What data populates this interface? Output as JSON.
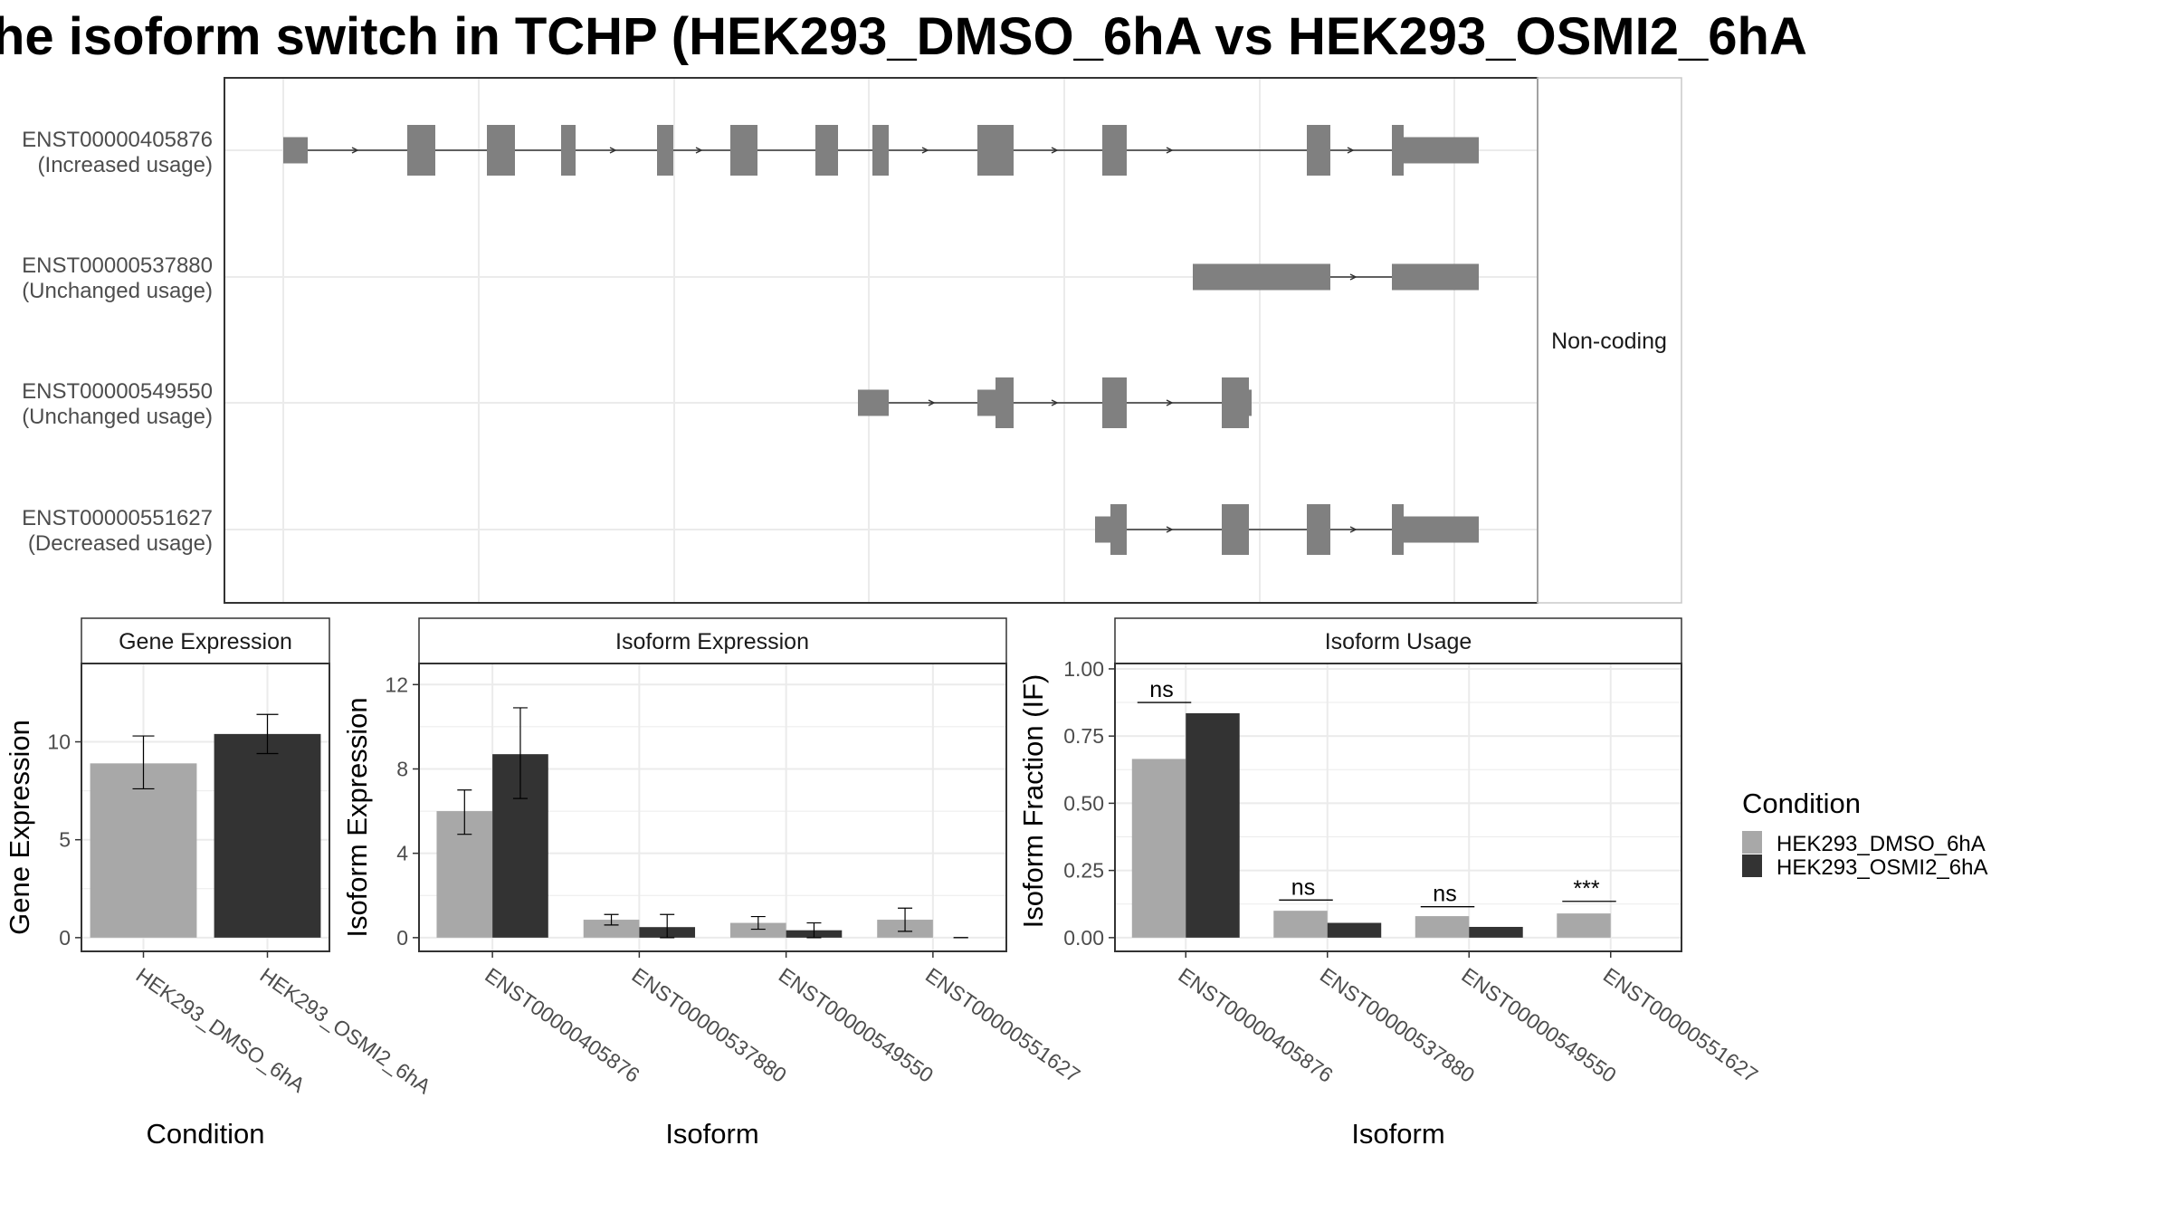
{
  "title": "he isoform switch in TCHP (HEK293_DMSO_6hA vs HEK293_OSMI2_6hA",
  "colors": {
    "dmso": "#a8a8a8",
    "osmi": "#333333",
    "exon": "#808080",
    "grid": "#ebebeb",
    "panel_border": "#333333"
  },
  "structure": {
    "coding_label": "Non-coding",
    "isoforms": [
      {
        "id": "ENST00000405876",
        "usage": "(Increased usage)"
      },
      {
        "id": "ENST00000537880",
        "usage": "(Unchanged usage)"
      },
      {
        "id": "ENST00000549550",
        "usage": "(Unchanged usage)"
      },
      {
        "id": "ENST00000551627",
        "usage": "(Decreased usage)"
      }
    ]
  },
  "legend": {
    "title": "Condition",
    "entries": [
      "HEK293_DMSO_6hA",
      "HEK293_OSMI2_6hA"
    ]
  },
  "chart_data": [
    {
      "type": "bar",
      "strip": "Gene Expression",
      "xlabel": "Condition",
      "ylabel": "Gene Expression",
      "ylim": [
        0,
        14
      ],
      "yticks": [
        0,
        5,
        10
      ],
      "categories": [
        "HEK293_DMSO_6hA",
        "HEK293_OSMI2_6hA"
      ],
      "values": [
        8.9,
        10.4
      ],
      "errors": [
        [
          7.6,
          10.3
        ],
        [
          9.4,
          11.4
        ]
      ]
    },
    {
      "type": "bar",
      "strip": "Isoform Expression",
      "xlabel": "Isoform",
      "ylabel": "Isoform Expression",
      "ylim": [
        0,
        13
      ],
      "yticks": [
        0,
        4,
        8,
        12
      ],
      "categories": [
        "ENST00000405876",
        "ENST00000537880",
        "ENST00000549550",
        "ENST00000551627"
      ],
      "series": [
        {
          "name": "HEK293_DMSO_6hA",
          "values": [
            6.0,
            0.85,
            0.7,
            0.85
          ],
          "errors": [
            [
              4.9,
              7.0
            ],
            [
              0.6,
              1.1
            ],
            [
              0.4,
              1.0
            ],
            [
              0.3,
              1.4
            ]
          ]
        },
        {
          "name": "HEK293_OSMI2_6hA",
          "values": [
            8.7,
            0.5,
            0.35,
            0.0
          ],
          "errors": [
            [
              6.6,
              10.9
            ],
            [
              0.0,
              1.1
            ],
            [
              0.0,
              0.7
            ],
            [
              0.0,
              0.0
            ]
          ]
        }
      ]
    },
    {
      "type": "bar",
      "strip": "Isoform Usage",
      "xlabel": "Isoform",
      "ylabel": "Isoform Fraction (IF)",
      "ylim": [
        0,
        1.02
      ],
      "yticks": [
        "0.00",
        "0.25",
        "0.50",
        "0.75",
        "1.00"
      ],
      "categories": [
        "ENST00000405876",
        "ENST00000537880",
        "ENST00000549550",
        "ENST00000551627"
      ],
      "series": [
        {
          "name": "HEK293_DMSO_6hA",
          "values": [
            0.665,
            0.1,
            0.08,
            0.09
          ]
        },
        {
          "name": "HEK293_OSMI2_6hA",
          "values": [
            0.835,
            0.055,
            0.04,
            0.0
          ]
        }
      ],
      "significance": [
        "ns",
        "ns",
        "ns",
        "***"
      ],
      "significance_y": [
        0.875,
        0.14,
        0.115,
        0.135
      ]
    }
  ]
}
